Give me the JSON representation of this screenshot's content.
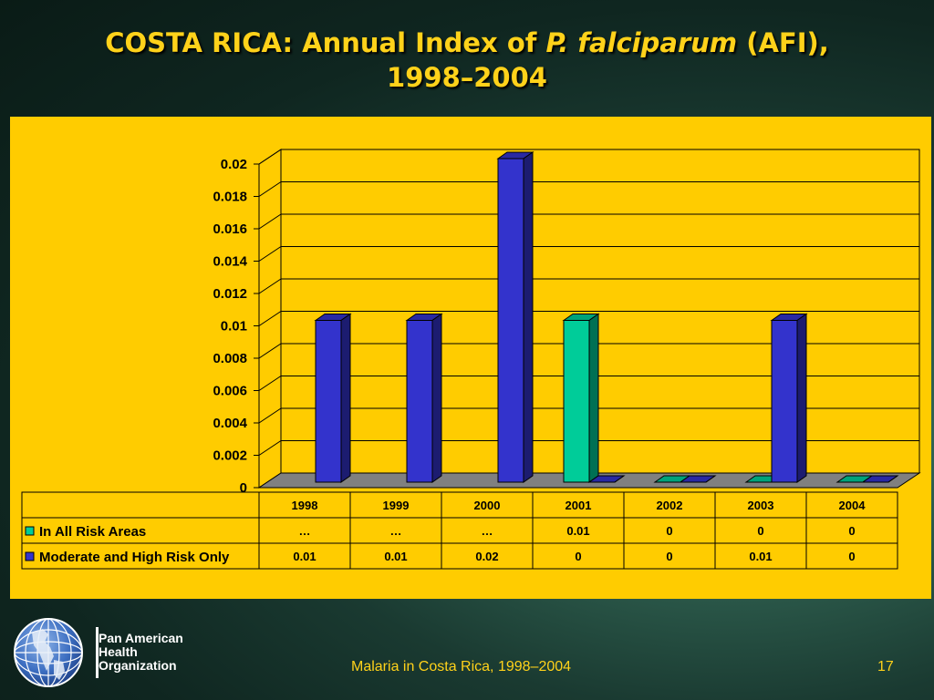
{
  "slide": {
    "title_part1": "COSTA RICA: Annual Index of ",
    "title_italic": "P. falciparum",
    "title_part2": " (AFI),",
    "title_line2": "1998–2004",
    "footer": "Malaria in Costa Rica, 1998–2004",
    "page_number": "17",
    "org_line1": "Pan American",
    "org_line2": "Health",
    "org_line3": "Organization"
  },
  "chart_data": {
    "type": "bar",
    "style": "3d-clustered-column-with-data-table",
    "categories": [
      "1998",
      "1999",
      "2000",
      "2001",
      "2002",
      "2003",
      "2004"
    ],
    "ylim": [
      0,
      0.02
    ],
    "yticks": [
      "0",
      "0.002",
      "0.004",
      "0.006",
      "0.008",
      "0.01",
      "0.012",
      "0.014",
      "0.016",
      "0.018",
      "0.02"
    ],
    "grid": true,
    "series": [
      {
        "name": "In All Risk Areas",
        "color": "#00cc99",
        "values": [
          null,
          null,
          null,
          0.01,
          0,
          0,
          0
        ],
        "table_labels": [
          "…",
          "…",
          "…",
          "0.01",
          "0",
          "0",
          "0"
        ]
      },
      {
        "name": "Moderate and High Risk Only",
        "color": "#3333cc",
        "values": [
          0.01,
          0.01,
          0.02,
          0,
          0,
          0.01,
          0
        ],
        "table_labels": [
          "0.01",
          "0.01",
          "0.02",
          "0",
          "0",
          "0.01",
          "0"
        ]
      }
    ],
    "colors": {
      "panel_background": "#ffcc00",
      "title": "#ffd21a",
      "floor": "#808080"
    }
  }
}
